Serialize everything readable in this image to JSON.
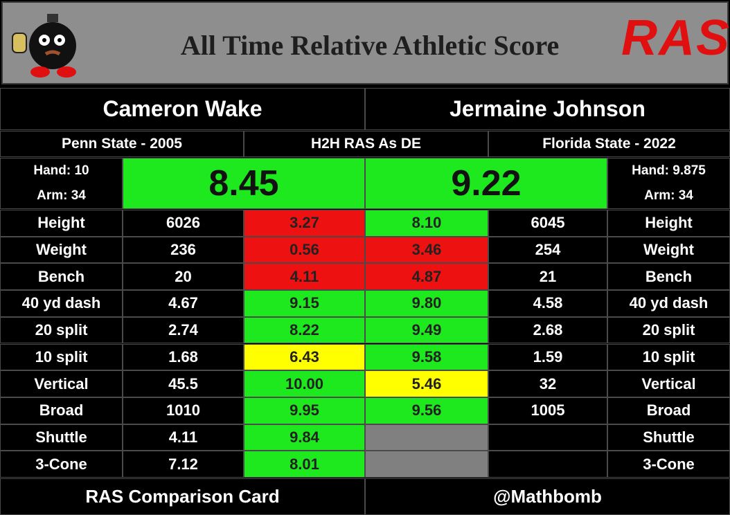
{
  "header": {
    "title": "All Time Relative Athletic Score",
    "logo": "RAS"
  },
  "comparison": "H2H RAS As DE",
  "players": [
    {
      "name": "Cameron Wake",
      "school": "Penn State - 2005",
      "hand": "Hand: 10",
      "arm": "Arm: 34",
      "ras": "8.45",
      "ras_color": "#1ee81e"
    },
    {
      "name": "Jermaine Johnson",
      "school": "Florida State - 2022",
      "hand": "Hand: 9.875",
      "arm": "Arm: 34",
      "ras": "9.22",
      "ras_color": "#1ee81e"
    }
  ],
  "rows": [
    {
      "label": "Height",
      "left": "6026",
      "left_score": "3.27",
      "left_color": "#ee1111",
      "right_score": "8.10",
      "right_color": "#1ee81e",
      "right": "6045"
    },
    {
      "label": "Weight",
      "left": "236",
      "left_score": "0.56",
      "left_color": "#ee1111",
      "right_score": "3.46",
      "right_color": "#ee1111",
      "right": "254"
    },
    {
      "label": "Bench",
      "left": "20",
      "left_score": "4.11",
      "left_color": "#ee1111",
      "right_score": "4.87",
      "right_color": "#ee1111",
      "right": "21"
    },
    {
      "label": "40 yd dash",
      "left": "4.67",
      "left_score": "9.15",
      "left_color": "#1ee81e",
      "right_score": "9.80",
      "right_color": "#1ee81e",
      "right": "4.58"
    },
    {
      "label": "20 split",
      "left": "2.74",
      "left_score": "8.22",
      "left_color": "#1ee81e",
      "right_score": "9.49",
      "right_color": "#1ee81e",
      "right": "2.68"
    },
    {
      "label": "10 split",
      "left": "1.68",
      "left_score": "6.43",
      "left_color": "#ffff00",
      "right_score": "9.58",
      "right_color": "#1ee81e",
      "right": "1.59"
    },
    {
      "label": "Vertical",
      "left": "45.5",
      "left_score": "10.00",
      "left_color": "#1ee81e",
      "right_score": "5.46",
      "right_color": "#ffff00",
      "right": "32"
    },
    {
      "label": "Broad",
      "left": "1010",
      "left_score": "9.95",
      "left_color": "#1ee81e",
      "right_score": "9.56",
      "right_color": "#1ee81e",
      "right": "1005"
    },
    {
      "label": "Shuttle",
      "left": "4.11",
      "left_score": "9.84",
      "left_color": "#1ee81e",
      "right_score": null,
      "right_color": "#808080",
      "right": null
    },
    {
      "label": "3-Cone",
      "left": "7.12",
      "left_score": "8.01",
      "left_color": "#1ee81e",
      "right_score": null,
      "right_color": "#808080",
      "right": null
    }
  ],
  "footer": {
    "left": "RAS Comparison Card",
    "right": "@Mathbomb"
  }
}
